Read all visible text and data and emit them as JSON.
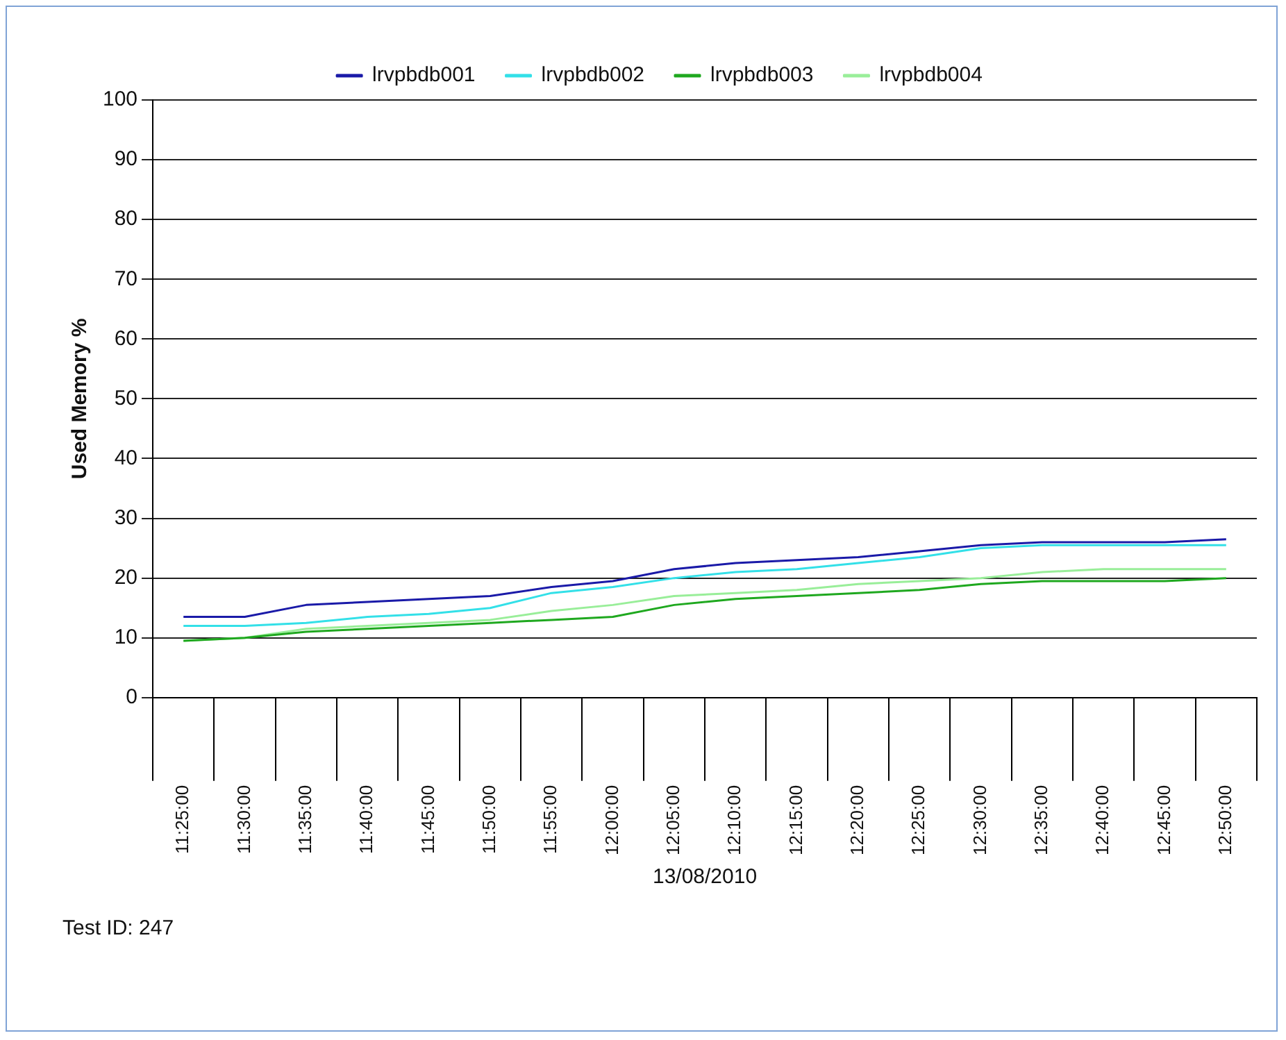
{
  "chart_data": {
    "type": "line",
    "ylabel": "Used Memory %",
    "xlabel": "13/08/2010",
    "annotations": [
      "Test ID: 247"
    ],
    "categories": [
      "11:25:00",
      "11:30:00",
      "11:35:00",
      "11:40:00",
      "11:45:00",
      "11:50:00",
      "11:55:00",
      "12:00:00",
      "12:05:00",
      "12:10:00",
      "12:15:00",
      "12:20:00",
      "12:25:00",
      "12:30:00",
      "12:35:00",
      "12:40:00",
      "12:45:00",
      "12:50:00"
    ],
    "ylim": [
      0,
      100
    ],
    "yticks": [
      0,
      10,
      20,
      30,
      40,
      50,
      60,
      70,
      80,
      90,
      100
    ],
    "grid": "y",
    "legend": "top",
    "marker": "none",
    "line_style": "solid",
    "series": [
      {
        "name": "lrvpbdb001",
        "color": "#1a1aa8",
        "values": [
          13.5,
          13.5,
          15.5,
          16,
          16.5,
          17,
          18.5,
          19.5,
          21.5,
          22.5,
          23,
          23.5,
          24.5,
          25.5,
          26,
          26,
          26,
          26.5
        ]
      },
      {
        "name": "lrvpbdb002",
        "color": "#33e0e8",
        "values": [
          12,
          12,
          12.5,
          13.5,
          14,
          15,
          17.5,
          18.5,
          20,
          21,
          21.5,
          22.5,
          23.5,
          25,
          25.5,
          25.5,
          25.5,
          25.5
        ]
      },
      {
        "name": "lrvpbdb003",
        "color": "#1fa81f",
        "values": [
          9.5,
          10,
          11,
          11.5,
          12,
          12.5,
          13,
          13.5,
          15.5,
          16.5,
          17,
          17.5,
          18,
          19,
          19.5,
          19.5,
          19.5,
          20
        ]
      },
      {
        "name": "lrvpbdb004",
        "color": "#99ee99",
        "values": [
          9.5,
          10,
          11.5,
          12,
          12.5,
          13,
          14.5,
          15.5,
          17,
          17.5,
          18,
          19,
          19.5,
          20,
          21,
          21.5,
          21.5,
          21.5
        ]
      }
    ]
  }
}
